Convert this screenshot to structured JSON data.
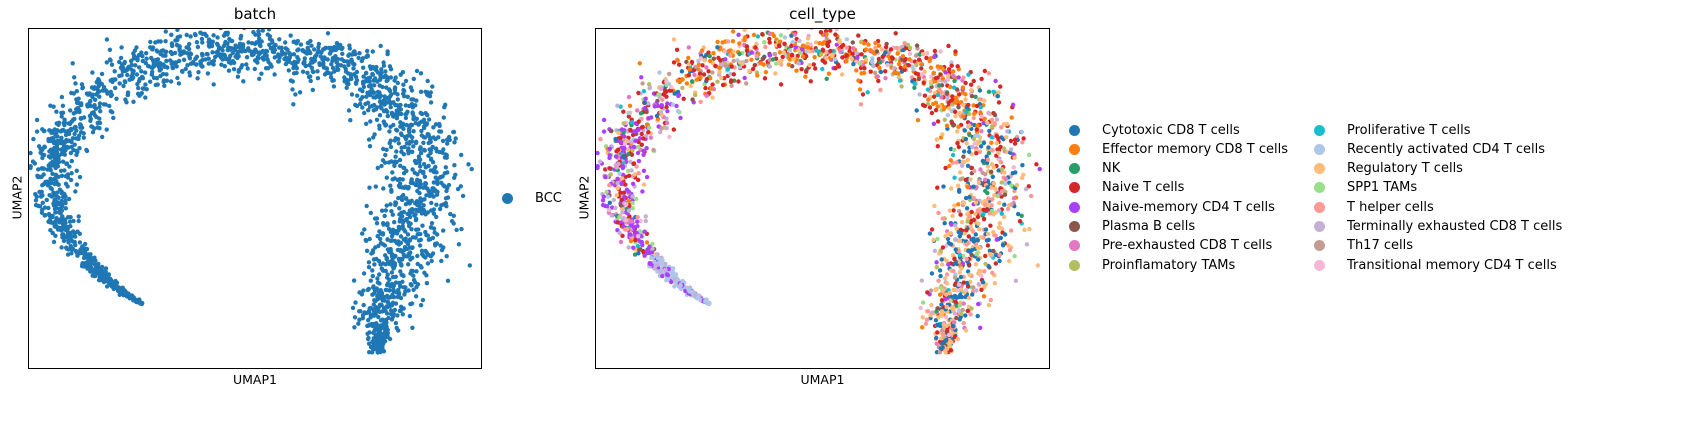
{
  "chart_data": [
    {
      "type": "scatter",
      "title": "batch",
      "xlabel": "UMAP1",
      "ylabel": "UMAP2",
      "ticks": false,
      "grid": false,
      "legend_placement": "right",
      "series": [
        {
          "name": "BCC",
          "color": "#1f77b4"
        }
      ],
      "xlim": [
        0,
        10
      ],
      "ylim": [
        0,
        10
      ]
    },
    {
      "type": "scatter",
      "title": "cell_type",
      "xlabel": "UMAP1",
      "ylabel": "UMAP2",
      "ticks": false,
      "grid": false,
      "legend_placement": "right",
      "legend_columns": 2,
      "xlim": [
        0,
        10
      ],
      "ylim": [
        0,
        10
      ],
      "series": [
        {
          "name": "Cytotoxic CD8 T cells",
          "color": "#1f77b4"
        },
        {
          "name": "Effector memory CD8 T cells",
          "color": "#ff7f0e"
        },
        {
          "name": "NK",
          "color": "#279e68"
        },
        {
          "name": "Naive T cells",
          "color": "#d62728"
        },
        {
          "name": "Naive-memory CD4 T cells",
          "color": "#aa40fc"
        },
        {
          "name": "Plasma B cells",
          "color": "#8c564b"
        },
        {
          "name": "Pre-exhausted CD8 T cells",
          "color": "#e377c2"
        },
        {
          "name": "Proinflamatory TAMs",
          "color": "#b5bd61"
        },
        {
          "name": "Proliferative T cells",
          "color": "#17becf"
        },
        {
          "name": "Recently activated CD4 T cells",
          "color": "#aec7e8"
        },
        {
          "name": "Regulatory T cells",
          "color": "#ffbb78"
        },
        {
          "name": "SPP1 TAMs",
          "color": "#98df8a"
        },
        {
          "name": "T helper cells",
          "color": "#ff9896"
        },
        {
          "name": "Terminally exhausted CD8 T cells",
          "color": "#c5b0d5"
        },
        {
          "name": "Th17 cells",
          "color": "#c49c94"
        },
        {
          "name": "Transitional memory CD4 T cells",
          "color": "#f7b6d2"
        }
      ]
    }
  ]
}
